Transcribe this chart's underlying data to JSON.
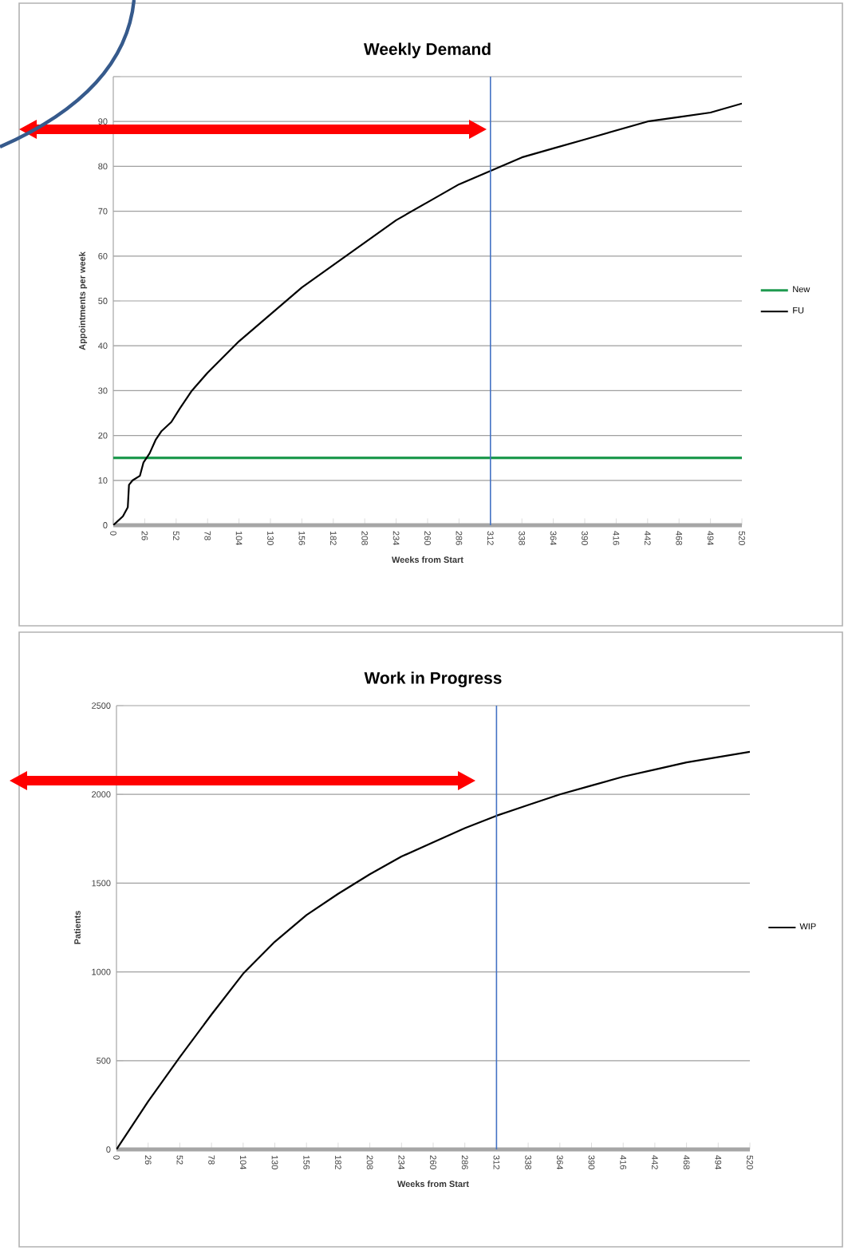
{
  "chart_data": [
    {
      "type": "line",
      "title": "Weekly Demand",
      "xlabel": "Weeks from Start",
      "ylabel": "Appointments per week",
      "xlim": [
        0,
        520
      ],
      "ylim": [
        0,
        100
      ],
      "xticks": [
        0,
        26,
        52,
        78,
        104,
        130,
        156,
        182,
        208,
        234,
        260,
        286,
        312,
        338,
        364,
        390,
        416,
        442,
        468,
        494,
        520
      ],
      "yticks": [
        0,
        10,
        20,
        30,
        40,
        50,
        60,
        70,
        80,
        90,
        {
          "value": 100,
          "label": null
        }
      ],
      "grid": "y",
      "legend": "right",
      "ref_lines": [
        {
          "axis": "x",
          "value": 312,
          "color": "#4472c4"
        }
      ],
      "series": [
        {
          "name": "New",
          "color": "#1f9a4f",
          "x": [
            0,
            520
          ],
          "values": [
            15,
            15
          ]
        },
        {
          "name": "FU",
          "color": "#000000",
          "x": [
            0,
            8,
            12,
            13,
            16,
            22,
            25,
            30,
            35,
            40,
            48,
            55,
            65,
            78,
            104,
            130,
            156,
            182,
            208,
            234,
            260,
            286,
            312,
            338,
            364,
            390,
            416,
            442,
            468,
            494,
            520
          ],
          "values": [
            0,
            2,
            4,
            9,
            10,
            11,
            14,
            16,
            19,
            21,
            23,
            26,
            30,
            34,
            41,
            47,
            53,
            58,
            63,
            68,
            72,
            76,
            79,
            82,
            84,
            86,
            88,
            90,
            91,
            92,
            94
          ]
        }
      ]
    },
    {
      "type": "line",
      "title": "Work in Progress",
      "xlabel": "Weeks from Start",
      "ylabel": "Patients",
      "xlim": [
        0,
        520
      ],
      "ylim": [
        0,
        2500
      ],
      "xticks": [
        0,
        26,
        52,
        78,
        104,
        130,
        156,
        182,
        208,
        234,
        260,
        286,
        312,
        338,
        364,
        390,
        416,
        442,
        468,
        494,
        520
      ],
      "yticks": [
        0,
        500,
        1000,
        1500,
        2000,
        2500
      ],
      "grid": "y",
      "legend": "right",
      "ref_lines": [
        {
          "axis": "x",
          "value": 312,
          "color": "#4472c4"
        }
      ],
      "series": [
        {
          "name": "WIP",
          "color": "#000000",
          "x": [
            0,
            26,
            52,
            78,
            104,
            130,
            156,
            182,
            208,
            234,
            260,
            286,
            312,
            338,
            364,
            390,
            416,
            442,
            468,
            494,
            520
          ],
          "values": [
            0,
            270,
            520,
            760,
            990,
            1170,
            1320,
            1440,
            1550,
            1650,
            1730,
            1810,
            1880,
            1940,
            2000,
            2050,
            2100,
            2140,
            2180,
            2210,
            2240
          ]
        }
      ]
    }
  ]
}
